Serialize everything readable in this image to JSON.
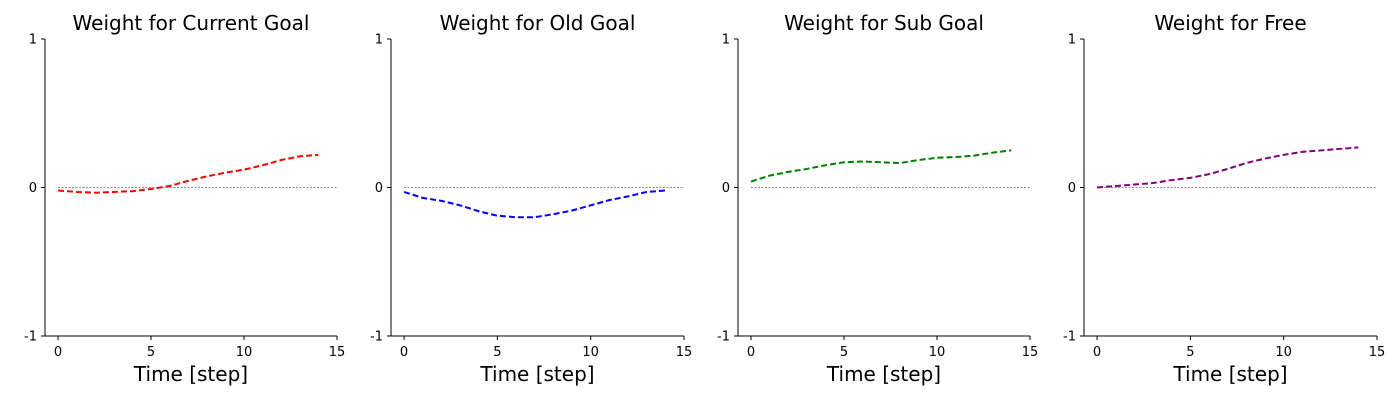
{
  "chart_data": [
    {
      "type": "line",
      "title": "Weight for Current Goal",
      "xlabel": "Time [step]",
      "ylabel": "",
      "xlim": [
        -0.7,
        15
      ],
      "ylim": [
        -1,
        1
      ],
      "xticks": [
        0,
        5,
        10,
        15
      ],
      "yticks": [
        -1,
        0,
        1
      ],
      "reference_line": 0,
      "series": [
        {
          "color": "#ff0000",
          "style": "dashed",
          "x": [
            0,
            1,
            2,
            3,
            4,
            5,
            6,
            7,
            8,
            9,
            10,
            11,
            12,
            13,
            14
          ],
          "y": [
            -0.02,
            -0.03,
            -0.035,
            -0.03,
            -0.025,
            -0.01,
            0.01,
            0.045,
            0.075,
            0.1,
            0.12,
            0.15,
            0.185,
            0.21,
            0.22
          ]
        }
      ]
    },
    {
      "type": "line",
      "title": "Weight for Old Goal",
      "xlabel": "Time [step]",
      "ylabel": "",
      "xlim": [
        -0.7,
        15
      ],
      "ylim": [
        -1,
        1
      ],
      "xticks": [
        0,
        5,
        10,
        15
      ],
      "yticks": [
        -1,
        0,
        1
      ],
      "reference_line": 0,
      "series": [
        {
          "color": "#0000ff",
          "style": "dashed",
          "x": [
            0,
            1,
            2,
            3,
            4,
            5,
            6,
            7,
            8,
            9,
            10,
            11,
            12,
            13,
            14
          ],
          "y": [
            -0.03,
            -0.07,
            -0.09,
            -0.12,
            -0.16,
            -0.19,
            -0.2,
            -0.2,
            -0.18,
            -0.155,
            -0.12,
            -0.085,
            -0.06,
            -0.03,
            -0.02
          ]
        }
      ]
    },
    {
      "type": "line",
      "title": "Weight for Sub Goal",
      "xlabel": "Time [step]",
      "ylabel": "",
      "xlim": [
        -0.7,
        15
      ],
      "ylim": [
        -1,
        1
      ],
      "xticks": [
        0,
        5,
        10,
        15
      ],
      "yticks": [
        -1,
        0,
        1
      ],
      "reference_line": 0,
      "series": [
        {
          "color": "#008000",
          "style": "dashed",
          "x": [
            0,
            1,
            2,
            3,
            4,
            5,
            6,
            7,
            8,
            9,
            10,
            11,
            12,
            13,
            14
          ],
          "y": [
            0.04,
            0.08,
            0.105,
            0.125,
            0.15,
            0.17,
            0.175,
            0.17,
            0.165,
            0.185,
            0.2,
            0.205,
            0.215,
            0.235,
            0.25
          ]
        }
      ]
    },
    {
      "type": "line",
      "title": "Weight for Free",
      "xlabel": "Time [step]",
      "ylabel": "",
      "xlim": [
        -0.7,
        15
      ],
      "ylim": [
        -1,
        1
      ],
      "xticks": [
        0,
        5,
        10,
        15
      ],
      "yticks": [
        -1,
        0,
        1
      ],
      "reference_line": 0,
      "series": [
        {
          "color": "#800080",
          "style": "dashed",
          "x": [
            0,
            1,
            2,
            3,
            4,
            5,
            6,
            7,
            8,
            9,
            10,
            11,
            12,
            13,
            14
          ],
          "y": [
            0.0,
            0.01,
            0.02,
            0.03,
            0.05,
            0.065,
            0.09,
            0.125,
            0.165,
            0.195,
            0.22,
            0.24,
            0.25,
            0.26,
            0.27
          ]
        }
      ]
    }
  ]
}
